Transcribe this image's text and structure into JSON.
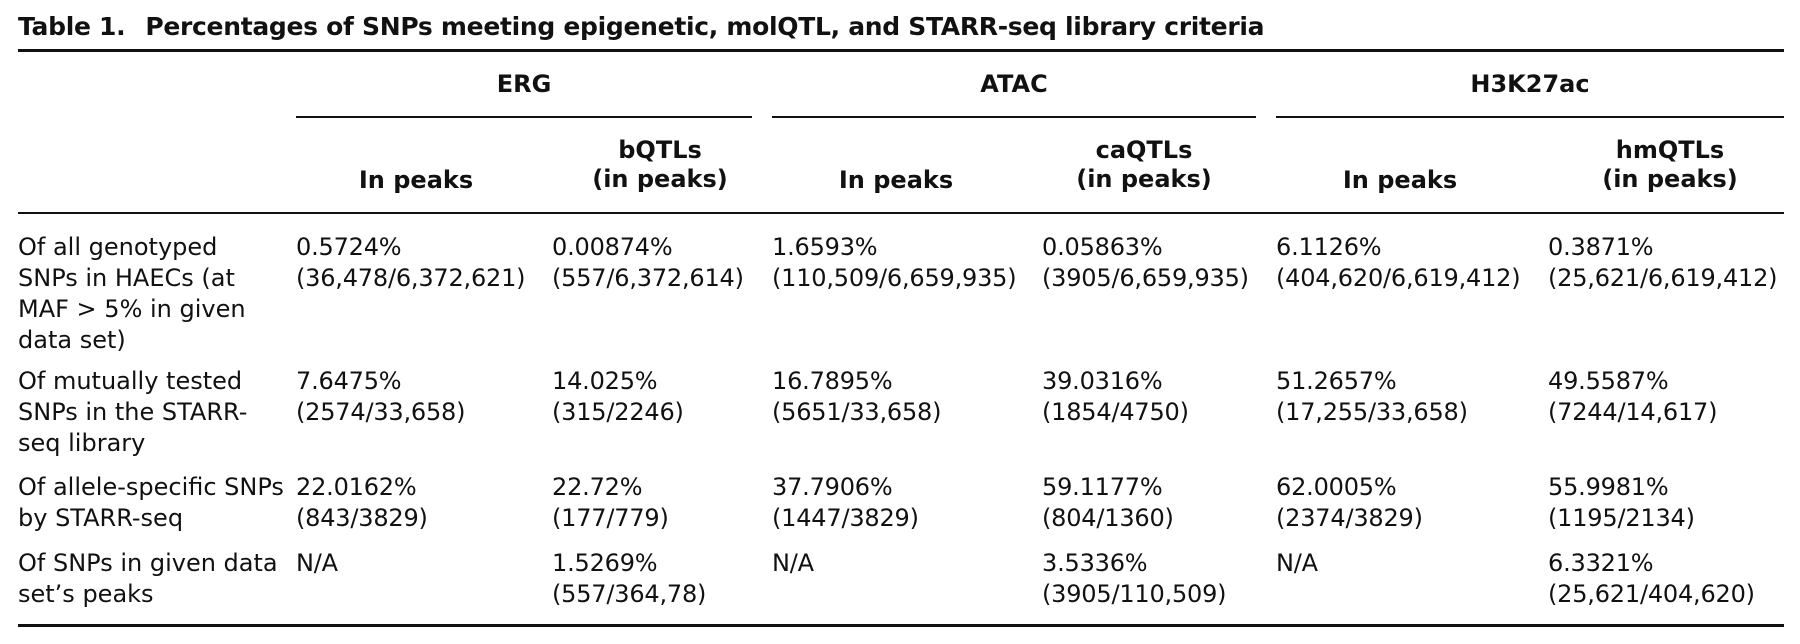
{
  "caption": {
    "label": "Table 1.",
    "title": "Percentages of SNPs meeting epigenetic, molQTL, and STARR-seq library criteria"
  },
  "groups": [
    "ERG",
    "ATAC",
    "H3K27ac"
  ],
  "subheaders": [
    [
      "In peaks"
    ],
    [
      "bQTLs",
      "(in peaks)"
    ],
    [
      "In peaks"
    ],
    [
      "caQTLs",
      "(in peaks)"
    ],
    [
      "In peaks"
    ],
    [
      "hmQTLs",
      "(in peaks)"
    ]
  ],
  "rows": [
    {
      "label": [
        "Of all genotyped",
        "SNPs in HAECs (at",
        "MAF > 5% in given",
        "data set)"
      ],
      "cells": [
        [
          "0.5724%",
          "(36,478/6,372,621)"
        ],
        [
          "0.00874%",
          "(557/6,372,614)"
        ],
        [
          "1.6593%",
          "(110,509/6,659,935)"
        ],
        [
          "0.05863%",
          "(3905/6,659,935)"
        ],
        [
          "6.1126%",
          "(404,620/6,619,412)"
        ],
        [
          "0.3871%",
          "(25,621/6,619,412)"
        ]
      ]
    },
    {
      "label": [
        "Of mutually tested",
        "SNPs in the STARR-",
        "seq library"
      ],
      "cells": [
        [
          "7.6475%",
          "(2574/33,658)"
        ],
        [
          "14.025%",
          "(315/2246)"
        ],
        [
          "16.7895%",
          "(5651/33,658)"
        ],
        [
          "39.0316%",
          "(1854/4750)"
        ],
        [
          "51.2657%",
          "(17,255/33,658)"
        ],
        [
          "49.5587%",
          "(7244/14,617)"
        ]
      ]
    },
    {
      "label": [
        "Of allele-specific SNPs",
        "by STARR-seq"
      ],
      "cells": [
        [
          "22.0162%",
          "(843/3829)"
        ],
        [
          "22.72%",
          "(177/779)"
        ],
        [
          "37.7906%",
          "(1447/3829)"
        ],
        [
          "59.1177%",
          "(804/1360)"
        ],
        [
          "62.0005%",
          "(2374/3829)"
        ],
        [
          "55.9981%",
          "(1195/2134)"
        ]
      ]
    },
    {
      "label": [
        "Of SNPs in given data",
        "set’s peaks"
      ],
      "cells": [
        [
          "N/A"
        ],
        [
          "1.5269%",
          "(557/364,78)"
        ],
        [
          "N/A"
        ],
        [
          "3.5336%",
          "(3905/110,509)"
        ],
        [
          "N/A"
        ],
        [
          "6.3321%",
          "(25,621/404,620)"
        ]
      ]
    }
  ]
}
